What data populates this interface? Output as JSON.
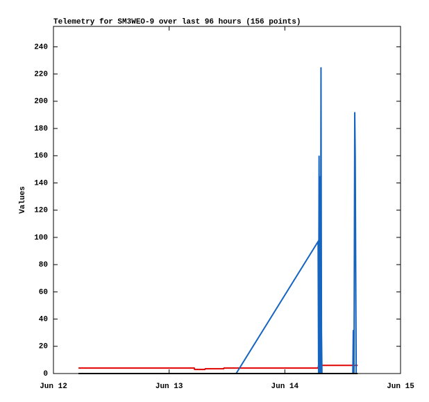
{
  "chart_data": {
    "type": "line",
    "title": "Telemetry for SM3WEO-9 over last 96 hours (156 points)",
    "y_label": "Values",
    "xlim": [
      0,
      72
    ],
    "xticks": [
      {
        "value": 0,
        "label": "Jun 12"
      },
      {
        "value": 24,
        "label": "Jun 13"
      },
      {
        "value": 48,
        "label": "Jun 14"
      },
      {
        "value": 72,
        "label": "Jun 15"
      }
    ],
    "ylim": [
      0,
      255
    ],
    "yticks": [
      0,
      20,
      40,
      60,
      80,
      100,
      120,
      140,
      160,
      180,
      200,
      220,
      240
    ],
    "grid": false,
    "series": [
      {
        "name": "red",
        "color": "#e00000",
        "x": [
          5.2,
          14.8,
          14.9,
          29.2,
          29.3,
          31.4,
          31.5,
          35.3,
          35.4,
          54.9,
          55.0,
          63.1
        ],
        "values": [
          4,
          4,
          4,
          4,
          3,
          3,
          3.5,
          3.5,
          4,
          4,
          6,
          6
        ]
      },
      {
        "name": "blue",
        "color": "#1464c0",
        "x": [
          37.9,
          54.9,
          55.0,
          55.1,
          55.2,
          55.3,
          55.4,
          55.5,
          55.6,
          55.7,
          55.8,
          55.9,
          62.1,
          62.2,
          62.35,
          62.5,
          62.6,
          62.8
        ],
        "values": [
          0,
          97,
          0,
          160,
          0,
          145,
          0,
          225,
          32,
          0,
          0,
          0,
          0,
          32,
          0,
          192,
          160,
          0
        ]
      },
      {
        "name": "black",
        "color": "#000000",
        "x": [
          5.2,
          63.1
        ],
        "values": [
          0,
          0
        ]
      }
    ]
  }
}
